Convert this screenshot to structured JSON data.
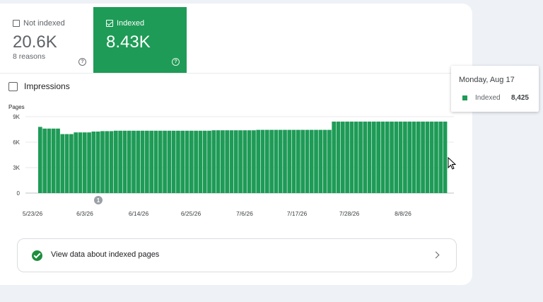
{
  "summary": {
    "not_indexed": {
      "label": "Not indexed",
      "value": "20.6K",
      "sub": "8 reasons",
      "checked": false
    },
    "indexed": {
      "label": "Indexed",
      "value": "8.43K",
      "checked": true
    }
  },
  "impressions_label": "Impressions",
  "chart_data": {
    "type": "bar",
    "ylabel": "Pages",
    "y_ticks": [
      "0",
      "3K",
      "6K",
      "9K"
    ],
    "ylim": [
      0,
      9000
    ],
    "x_ticks": [
      "5/23/26",
      "6/3/26",
      "6/14/26",
      "6/25/26",
      "7/6/26",
      "7/17/26",
      "7/28/26",
      "8/8/26"
    ],
    "annotation": "1",
    "colors": {
      "bar": "#1e9b56"
    },
    "series": [
      {
        "name": "Indexed",
        "values": [
          7800,
          7600,
          7600,
          7600,
          7600,
          6950,
          6950,
          6950,
          7150,
          7150,
          7150,
          7150,
          7250,
          7250,
          7300,
          7300,
          7300,
          7350,
          7350,
          7350,
          7350,
          7350,
          7350,
          7350,
          7350,
          7350,
          7350,
          7350,
          7350,
          7350,
          7350,
          7350,
          7350,
          7350,
          7350,
          7350,
          7350,
          7350,
          7350,
          7400,
          7400,
          7400,
          7400,
          7400,
          7400,
          7400,
          7400,
          7400,
          7400,
          7450,
          7450,
          7450,
          7450,
          7450,
          7450,
          7450,
          7450,
          7450,
          7450,
          7450,
          7450,
          7450,
          7450,
          7450,
          7450,
          7450,
          8425,
          8425,
          8425,
          8425,
          8425,
          8425,
          8425,
          8425,
          8425,
          8425,
          8425,
          8425,
          8425,
          8425,
          8425,
          8425,
          8425,
          8425,
          8425,
          8425,
          8425,
          8425,
          8425,
          8425,
          8425,
          8425
        ]
      }
    ]
  },
  "tooltip": {
    "date": "Monday, Aug 17",
    "series": "Indexed",
    "value": "8,425"
  },
  "cta": {
    "label": "View data about indexed pages"
  }
}
